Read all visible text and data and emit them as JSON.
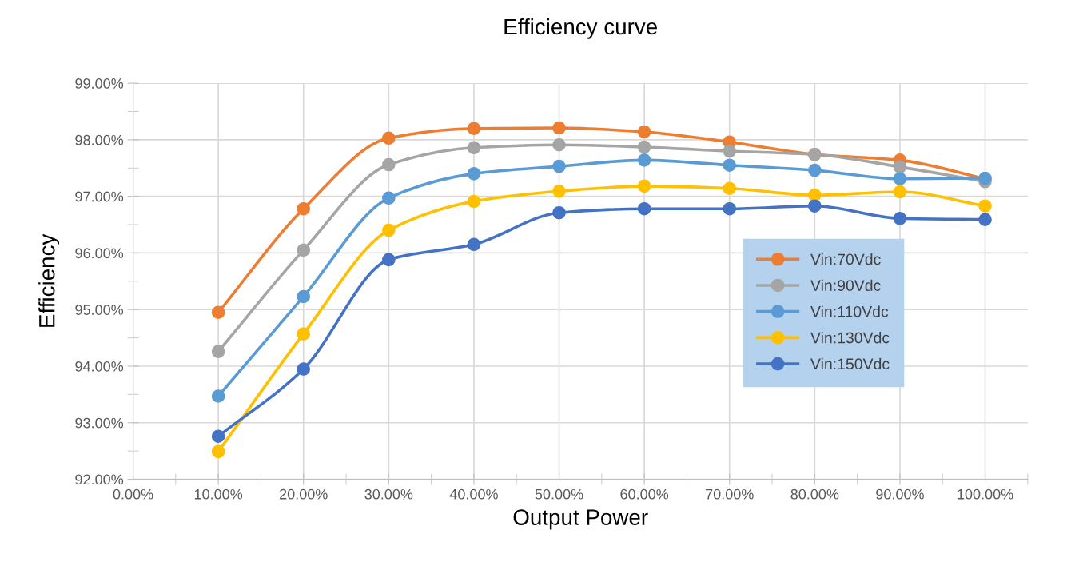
{
  "chart_data": {
    "type": "line",
    "title": "Efficiency curve",
    "xlabel": "Output Power",
    "ylabel": "Efficiency",
    "x": [
      10,
      20,
      30,
      40,
      50,
      60,
      70,
      80,
      90,
      100
    ],
    "series": [
      {
        "name": "Vin:70Vdc",
        "color": "#ed7d31",
        "values": [
          94.95,
          96.78,
          98.03,
          98.2,
          98.21,
          98.14,
          97.96,
          97.74,
          97.64,
          97.31
        ]
      },
      {
        "name": "Vin:90Vdc",
        "color": "#a5a5a5",
        "values": [
          94.26,
          96.05,
          97.56,
          97.86,
          97.91,
          97.87,
          97.8,
          97.74,
          97.52,
          97.26
        ]
      },
      {
        "name": "Vin:110Vdc",
        "color": "#5b9bd5",
        "values": [
          93.47,
          95.23,
          96.97,
          97.4,
          97.53,
          97.64,
          97.55,
          97.46,
          97.31,
          97.32
        ]
      },
      {
        "name": "Vin:130Vdc",
        "color": "#ffc000",
        "values": [
          92.49,
          94.57,
          96.4,
          96.91,
          97.09,
          97.18,
          97.14,
          97.02,
          97.08,
          96.83
        ]
      },
      {
        "name": "Vin:150Vdc",
        "color": "#4472c4",
        "values": [
          92.76,
          93.95,
          95.88,
          96.15,
          96.71,
          96.78,
          96.78,
          96.83,
          96.61,
          96.59
        ]
      }
    ],
    "xlim": [
      0,
      105
    ],
    "xticks": [
      {
        "value": 0,
        "label": "0.00%"
      },
      {
        "value": 10,
        "label": "10.00%"
      },
      {
        "value": 20,
        "label": "20.00%"
      },
      {
        "value": 30,
        "label": "30.00%"
      },
      {
        "value": 40,
        "label": "40.00%"
      },
      {
        "value": 50,
        "label": "50.00%"
      },
      {
        "value": 60,
        "label": "60.00%"
      },
      {
        "value": 70,
        "label": "70.00%"
      },
      {
        "value": 80,
        "label": "80.00%"
      },
      {
        "value": 90,
        "label": "90.00%"
      },
      {
        "value": 100,
        "label": "100.00%"
      }
    ],
    "ylim": [
      92,
      99
    ],
    "yticks": [
      {
        "value": 92,
        "label": "92.00%"
      },
      {
        "value": 93,
        "label": "93.00%"
      },
      {
        "value": 94,
        "label": "94.00%"
      },
      {
        "value": 95,
        "label": "95.00%"
      },
      {
        "value": 96,
        "label": "96.00%"
      },
      {
        "value": 97,
        "label": "97.00%"
      },
      {
        "value": 98,
        "label": "98.00%"
      },
      {
        "value": 99,
        "label": "99.00%"
      }
    ],
    "grid": true,
    "legend": "right",
    "marker": "circle",
    "line_style": "solid"
  }
}
